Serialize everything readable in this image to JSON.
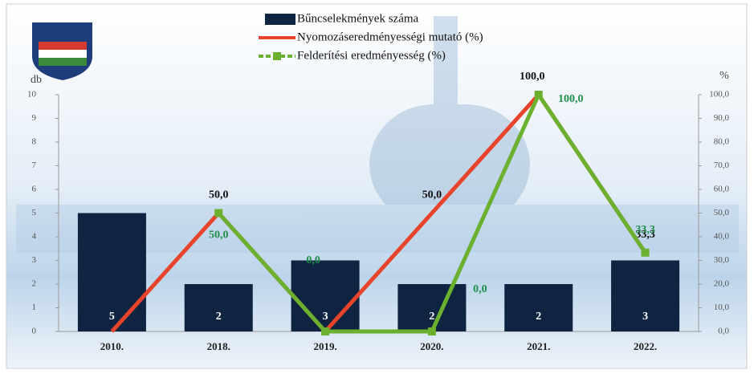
{
  "chart_data": {
    "type": "bar_line",
    "categories": [
      "2010.",
      "2018.",
      "2019.",
      "2020.",
      "2021.",
      "2022."
    ],
    "y_label": "db",
    "y2_label": "%",
    "ylim": [
      0,
      10
    ],
    "yticks": [
      0,
      1,
      2,
      3,
      4,
      5,
      6,
      7,
      8,
      9,
      10
    ],
    "y2lim": [
      0,
      100
    ],
    "y2ticks": [
      {
        "value": 0,
        "label": "0,0"
      },
      {
        "value": 10,
        "label": "10,0"
      },
      {
        "value": 20,
        "label": "20,0"
      },
      {
        "value": 30,
        "label": "30,0"
      },
      {
        "value": 40,
        "label": "40,0"
      },
      {
        "value": 50,
        "label": "50,0"
      },
      {
        "value": 60,
        "label": "60,0"
      },
      {
        "value": 70,
        "label": "70,0"
      },
      {
        "value": 80,
        "label": "80,0"
      },
      {
        "value": 90,
        "label": "90,0"
      },
      {
        "value": 100,
        "label": "100,0"
      }
    ],
    "series": [
      {
        "name": "Bűncselekmények száma",
        "type": "bar",
        "color": "#0e2440",
        "values": [
          5,
          2,
          3,
          2,
          2,
          3
        ]
      },
      {
        "name": "Nyomozáseredményességi mutató (%)",
        "type": "line",
        "axis": "y2",
        "color": "#e8432b",
        "values": [
          0,
          50,
          0,
          50,
          100,
          33.3
        ],
        "value_labels": [
          null,
          "50,0",
          null,
          "50,0",
          "100,0",
          "33,3"
        ]
      },
      {
        "name": "Felderítési eredményesség (%)",
        "type": "line",
        "axis": "y2",
        "color": "#6bb02e",
        "marker": "square",
        "values": [
          null,
          50,
          0,
          0,
          100,
          33.3
        ],
        "value_labels": [
          null,
          "50,0",
          "0,0",
          "0,0",
          "100,0",
          "33,3"
        ]
      }
    ]
  }
}
